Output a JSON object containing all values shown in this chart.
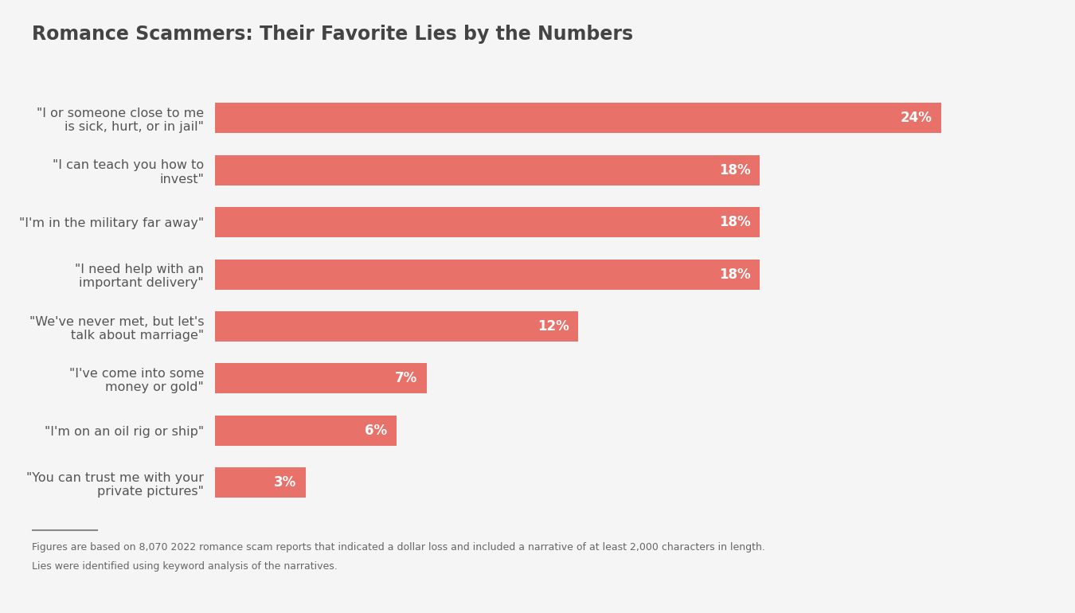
{
  "title": "Romance Scammers: Their Favorite Lies by the Numbers",
  "categories": [
    "\"I or someone close to me\nis sick, hurt, or in jail\"",
    "\"I can teach you how to\ninvest\"",
    "\"I'm in the military far away\"",
    "\"I need help with an\nimportant delivery\"",
    "\"We've never met, but let's\ntalk about marriage\"",
    "\"I've come into some\nmoney or gold\"",
    "\"I'm on an oil rig or ship\"",
    "\"You can trust me with your\nprivate pictures\""
  ],
  "values": [
    24,
    18,
    18,
    18,
    12,
    7,
    6,
    3
  ],
  "bar_color": "#E8716A",
  "label_color": "#ffffff",
  "title_color": "#444444",
  "background_color": "#f5f5f5",
  "footnote_line1": "Figures are based on 8,070 2022 romance scam reports that indicated a dollar loss and included a narrative of at least 2,000 characters in length.",
  "footnote_line2": "Lies were identified using keyword analysis of the narratives.",
  "xlim": [
    0,
    27
  ]
}
